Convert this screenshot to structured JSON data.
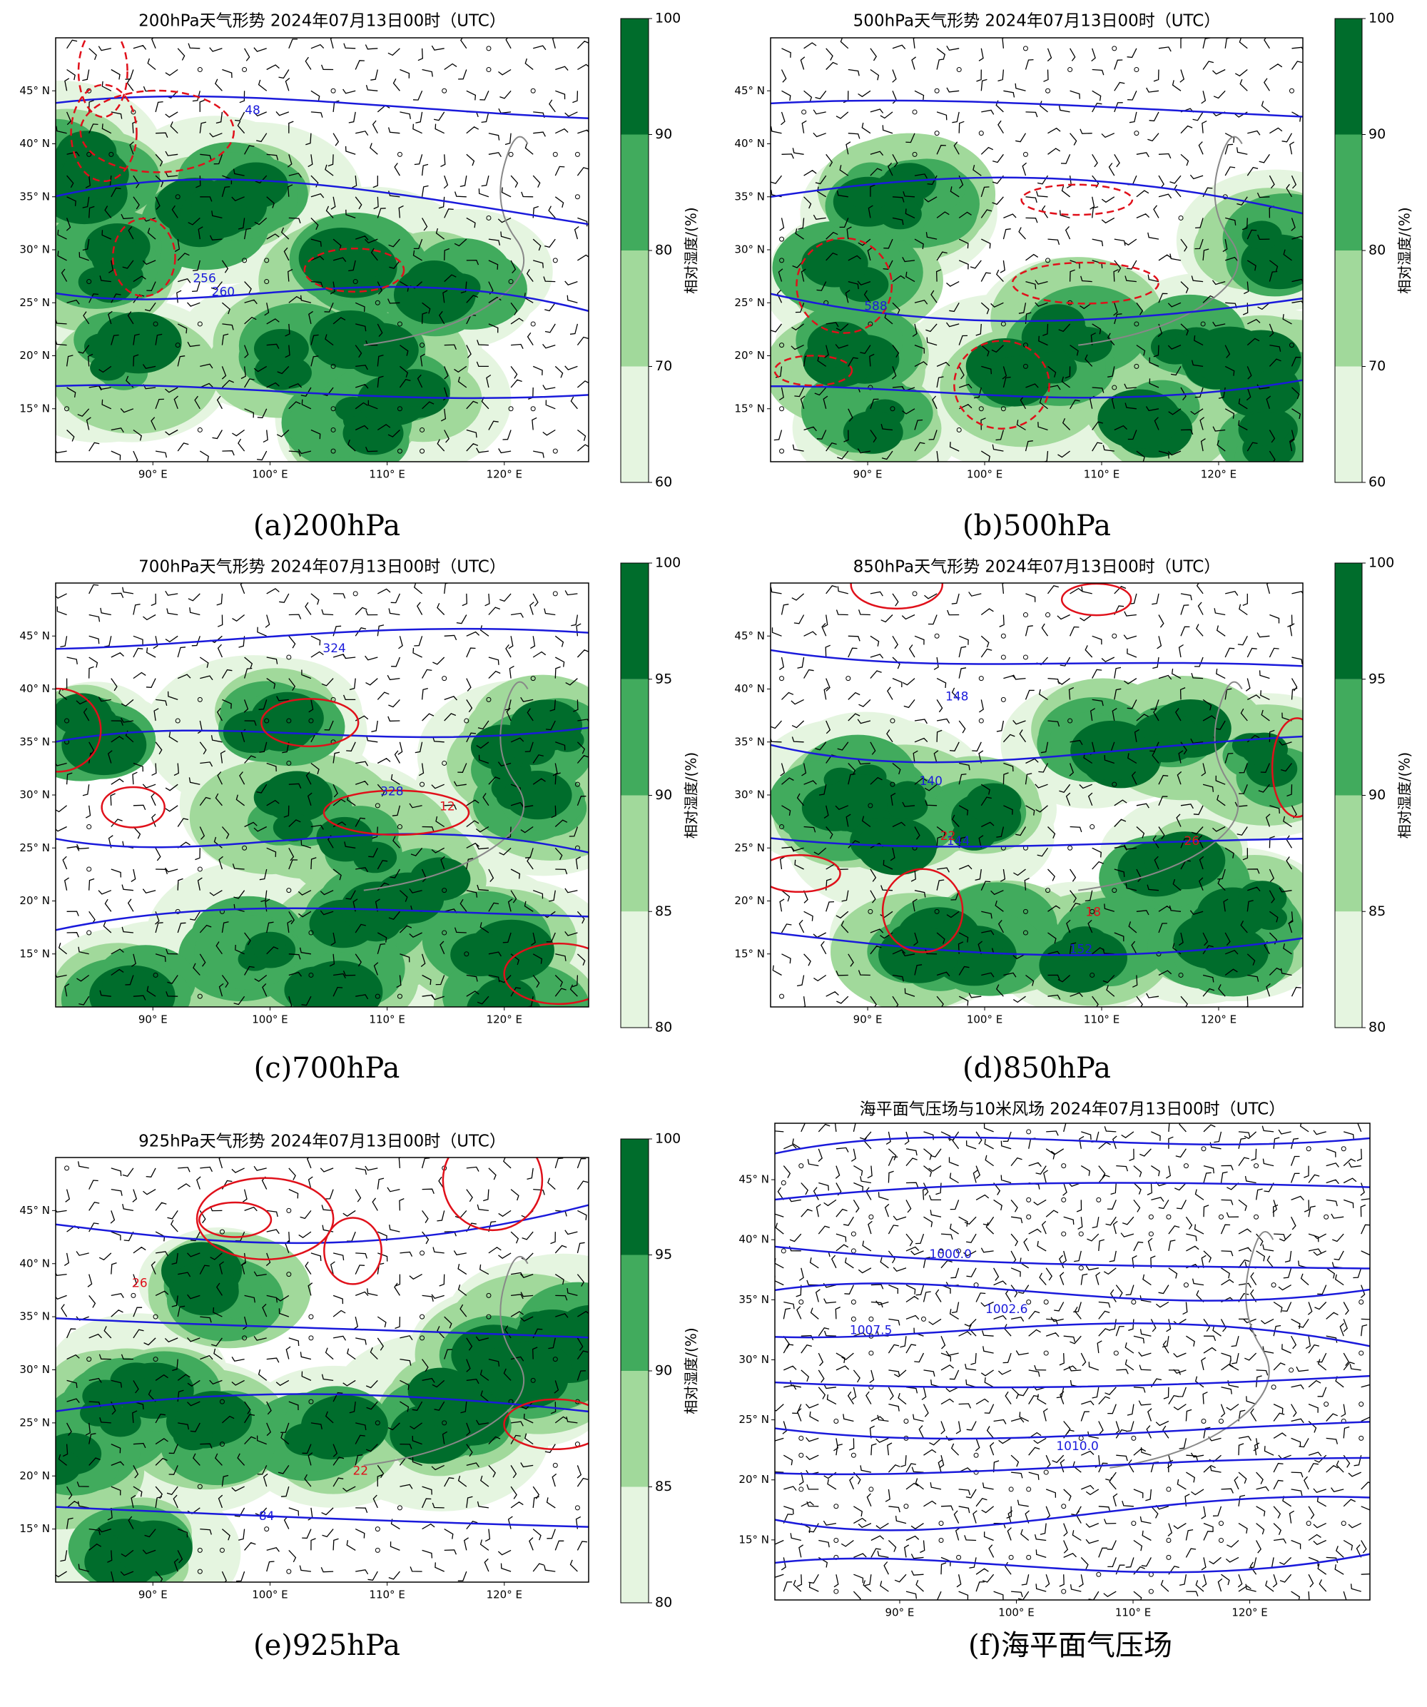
{
  "chart_data": [
    {
      "type": "map",
      "title": "200hPa天气形势  2024年07月13日00时（UTC）",
      "caption": "(a)200hPa",
      "xlim": [
        81.7,
        127.2
      ],
      "ylim": [
        10,
        50
      ],
      "xticks": [
        {
          "value": 90,
          "label": "90° E"
        },
        {
          "value": 100,
          "label": "100° E"
        },
        {
          "value": 110,
          "label": "110° E"
        },
        {
          "value": 120,
          "label": "120° E"
        }
      ],
      "yticks": [
        {
          "value": 15,
          "label": "15° N"
        },
        {
          "value": 20,
          "label": "20° N"
        },
        {
          "value": 25,
          "label": "25° N"
        },
        {
          "value": 30,
          "label": "30° N"
        },
        {
          "value": 35,
          "label": "35° N"
        },
        {
          "value": 40,
          "label": "40° N"
        },
        {
          "value": 45,
          "label": "45° N"
        }
      ],
      "colorbar": {
        "label": "相对湿度/(%)",
        "ticks": [
          60,
          70,
          80,
          90,
          100
        ],
        "colors": [
          "#e5f5e0",
          "#a1d99b",
          "#41ab5d",
          "#006d2c"
        ]
      },
      "contour_labels": [
        "260",
        "256",
        "48"
      ]
    },
    {
      "type": "map",
      "title": "500hPa天气形势  2024年07月13日00时（UTC）",
      "caption": "(b)500hPa",
      "xlim": [
        81.7,
        127.2
      ],
      "ylim": [
        10,
        50
      ],
      "xticks": [
        {
          "value": 90,
          "label": "90° E"
        },
        {
          "value": 100,
          "label": "100° E"
        },
        {
          "value": 110,
          "label": "110° E"
        },
        {
          "value": 120,
          "label": "120° E"
        }
      ],
      "yticks": [
        {
          "value": 15,
          "label": "15° N"
        },
        {
          "value": 20,
          "label": "20° N"
        },
        {
          "value": 25,
          "label": "25° N"
        },
        {
          "value": 30,
          "label": "30° N"
        },
        {
          "value": 35,
          "label": "35° N"
        },
        {
          "value": 40,
          "label": "40° N"
        },
        {
          "value": 45,
          "label": "45° N"
        }
      ],
      "colorbar": {
        "label": "相对湿度/(%)",
        "ticks": [
          60,
          70,
          80,
          90,
          100
        ],
        "colors": [
          "#e5f5e0",
          "#a1d99b",
          "#41ab5d",
          "#006d2c"
        ]
      },
      "contour_labels": [
        "588"
      ]
    },
    {
      "type": "map",
      "title": "700hPa天气形势  2024年07月13日00时（UTC）",
      "caption": "(c)700hPa",
      "xlim": [
        81.7,
        127.2
      ],
      "ylim": [
        10,
        50
      ],
      "xticks": [
        {
          "value": 90,
          "label": "90° E"
        },
        {
          "value": 100,
          "label": "100° E"
        },
        {
          "value": 110,
          "label": "110° E"
        },
        {
          "value": 120,
          "label": "120° E"
        }
      ],
      "yticks": [
        {
          "value": 15,
          "label": "15° N"
        },
        {
          "value": 20,
          "label": "20° N"
        },
        {
          "value": 25,
          "label": "25° N"
        },
        {
          "value": 30,
          "label": "30° N"
        },
        {
          "value": 35,
          "label": "35° N"
        },
        {
          "value": 40,
          "label": "40° N"
        },
        {
          "value": 45,
          "label": "45° N"
        }
      ],
      "colorbar": {
        "label": "相对湿度/(%)",
        "ticks": [
          80,
          85,
          90,
          95,
          100
        ],
        "colors": [
          "#e5f5e0",
          "#a1d99b",
          "#41ab5d",
          "#006d2c"
        ]
      },
      "contour_labels": [
        "328",
        "324",
        "12"
      ]
    },
    {
      "type": "map",
      "title": "850hPa天气形势  2024年07月13日00时（UTC）",
      "caption": "(d)850hPa",
      "xlim": [
        81.7,
        127.2
      ],
      "ylim": [
        10,
        50
      ],
      "xticks": [
        {
          "value": 90,
          "label": "90° E"
        },
        {
          "value": 100,
          "label": "100° E"
        },
        {
          "value": 110,
          "label": "110° E"
        },
        {
          "value": 120,
          "label": "120° E"
        }
      ],
      "yticks": [
        {
          "value": 15,
          "label": "15° N"
        },
        {
          "value": 20,
          "label": "20° N"
        },
        {
          "value": 25,
          "label": "25° N"
        },
        {
          "value": 30,
          "label": "30° N"
        },
        {
          "value": 35,
          "label": "35° N"
        },
        {
          "value": 40,
          "label": "40° N"
        },
        {
          "value": 45,
          "label": "45° N"
        }
      ],
      "colorbar": {
        "label": "相对湿度/(%)",
        "ticks": [
          80,
          85,
          90,
          95,
          100
        ],
        "colors": [
          "#e5f5e0",
          "#a1d99b",
          "#41ab5d",
          "#006d2c"
        ]
      },
      "contour_labels": [
        "152",
        "148",
        "144",
        "140",
        "22",
        "26",
        "18"
      ]
    },
    {
      "type": "map",
      "title": "925hPa天气形势  2024年07月13日00时（UTC）",
      "caption": "(e)925hPa",
      "xlim": [
        81.7,
        127.2
      ],
      "ylim": [
        10,
        50
      ],
      "xticks": [
        {
          "value": 90,
          "label": "90° E"
        },
        {
          "value": 100,
          "label": "100° E"
        },
        {
          "value": 110,
          "label": "110° E"
        },
        {
          "value": 120,
          "label": "120° E"
        }
      ],
      "yticks": [
        {
          "value": 15,
          "label": "15° N"
        },
        {
          "value": 20,
          "label": "20° N"
        },
        {
          "value": 25,
          "label": "25° N"
        },
        {
          "value": 30,
          "label": "30° N"
        },
        {
          "value": 35,
          "label": "35° N"
        },
        {
          "value": 40,
          "label": "40° N"
        },
        {
          "value": 45,
          "label": "45° N"
        }
      ],
      "colorbar": {
        "label": "相对湿度/(%)",
        "ticks": [
          80,
          85,
          90,
          95,
          100
        ],
        "colors": [
          "#e5f5e0",
          "#a1d99b",
          "#41ab5d",
          "#006d2c"
        ]
      },
      "contour_labels": [
        "84",
        "26",
        "22"
      ]
    },
    {
      "type": "map",
      "title": "海平面气压场与10米风场  2024年07月13日00时（UTC）",
      "caption": "(f)海平面气压场",
      "xlim": [
        79.3,
        130.3
      ],
      "ylim": [
        10,
        49.7
      ],
      "xticks": [
        {
          "value": 90,
          "label": "90° E"
        },
        {
          "value": 100,
          "label": "100° E"
        },
        {
          "value": 110,
          "label": "110° E"
        },
        {
          "value": 120,
          "label": "120° E"
        }
      ],
      "yticks": [
        {
          "value": 15,
          "label": "15° N"
        },
        {
          "value": 20,
          "label": "20° N"
        },
        {
          "value": 25,
          "label": "25° N"
        },
        {
          "value": 30,
          "label": "30° N"
        },
        {
          "value": 35,
          "label": "35° N"
        },
        {
          "value": 40,
          "label": "40° N"
        },
        {
          "value": 45,
          "label": "45° N"
        }
      ],
      "contour_labels": [
        "1010.0",
        "1002.6",
        "1000.0",
        "1007.5"
      ]
    }
  ]
}
